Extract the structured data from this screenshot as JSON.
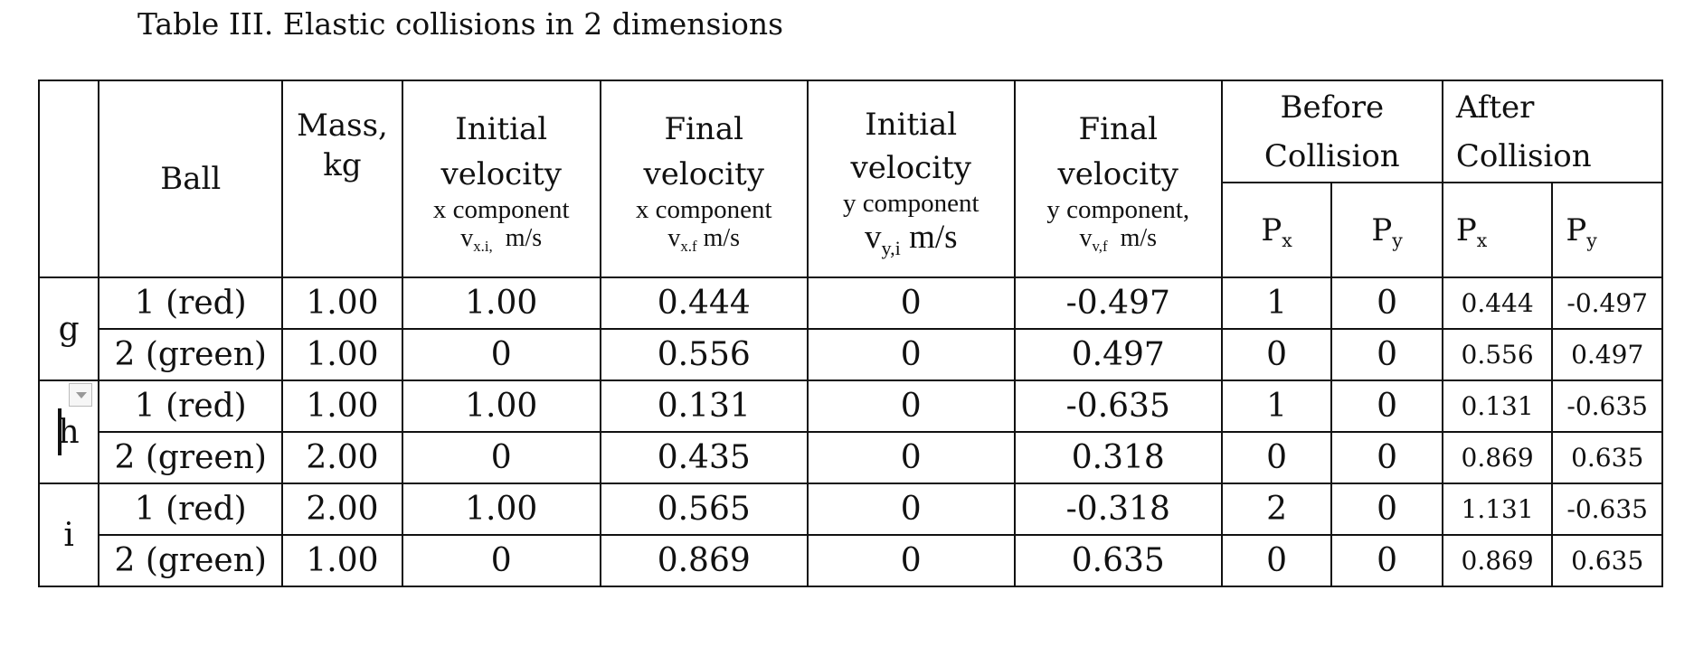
{
  "caption": "Table III. Elastic collisions in 2 dimensions",
  "headers": {
    "ball": "Ball",
    "mass_line1": "Mass,",
    "mass_line2": "kg",
    "initial_vel_x": {
      "line1": "Initial",
      "line2": "velocity",
      "sub": "x component",
      "symbol": "v",
      "symbol_sub": "x.i,",
      "unit": "m/s"
    },
    "final_vel_x": {
      "line1": "Final",
      "line2": "velocity",
      "sub": "x component",
      "symbol": "v",
      "symbol_sub": "x.f",
      "unit": "m/s"
    },
    "initial_vel_y": {
      "line1": "Initial",
      "line2": "velocity",
      "sub": "y component",
      "symbol": "v",
      "symbol_sub": "y,i",
      "unit": "m/s"
    },
    "final_vel_y": {
      "line1": "Final",
      "line2": "velocity",
      "sub": "y component,",
      "symbol": "v",
      "symbol_sub": "v,f",
      "unit": "m/s"
    },
    "before_line1": "Before",
    "before_line2": "Collision",
    "after_line1": "After",
    "after_line2": "Collision",
    "p_letter": "P",
    "px_sub": "x",
    "py_sub": "y"
  },
  "groups": [
    {
      "label": "g",
      "rows": [
        {
          "ball": "1 (red)",
          "mass": "1.00",
          "vxi": "1.00",
          "vxf": "0.444",
          "vyi": "0",
          "vyf": "-0.497",
          "bpx": "1",
          "bpy": "0",
          "apx": "0.444",
          "apy": "-0.497"
        },
        {
          "ball": "2 (green)",
          "mass": "1.00",
          "vxi": "0",
          "vxf": "0.556",
          "vyi": "0",
          "vyf": "0.497",
          "bpx": "0",
          "bpy": "0",
          "apx": "0.556",
          "apy": "0.497"
        }
      ]
    },
    {
      "label": "h",
      "rows": [
        {
          "ball": "1 (red)",
          "mass": "1.00",
          "vxi": "1.00",
          "vxf": "0.131",
          "vyi": "0",
          "vyf": "-0.635",
          "bpx": "1",
          "bpy": "0",
          "apx": "0.131",
          "apy": "-0.635"
        },
        {
          "ball": "2 (green)",
          "mass": "2.00",
          "vxi": "0",
          "vxf": "0.435",
          "vyi": "0",
          "vyf": "0.318",
          "bpx": "0",
          "bpy": "0",
          "apx": "0.869",
          "apy": "0.635"
        }
      ]
    },
    {
      "label": "i",
      "rows": [
        {
          "ball": "1 (red)",
          "mass": "2.00",
          "vxi": "1.00",
          "vxf": "0.565",
          "vyi": "0",
          "vyf": "-0.318",
          "bpx": "2",
          "bpy": "0",
          "apx": "1.131",
          "apy": "-0.635"
        },
        {
          "ball": "2 (green)",
          "mass": "1.00",
          "vxi": "0",
          "vxf": "0.869",
          "vyi": "0",
          "vyf": "0.635",
          "bpx": "0",
          "bpy": "0",
          "apx": "0.869",
          "apy": "0.635"
        }
      ]
    }
  ]
}
